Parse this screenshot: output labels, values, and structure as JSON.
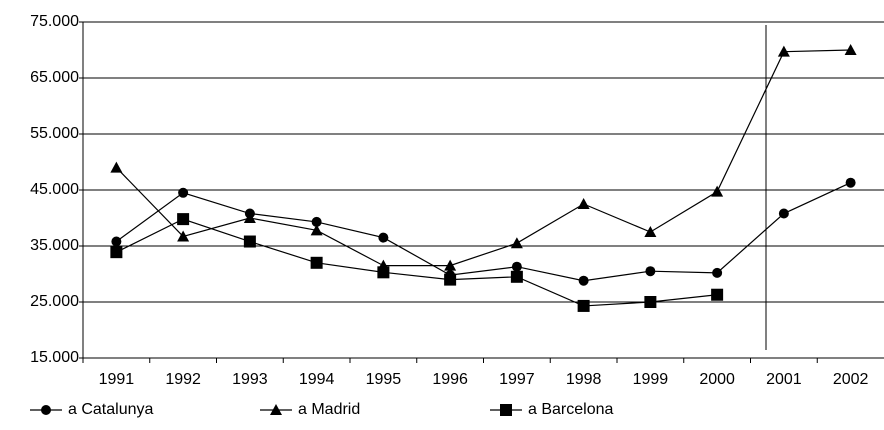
{
  "chart_data": {
    "type": "line",
    "categories": [
      "1991",
      "1992",
      "1993",
      "1994",
      "1995",
      "1996",
      "1997",
      "1998",
      "1999",
      "2000",
      "2001",
      "2002"
    ],
    "series": [
      {
        "name": "a Catalunya",
        "color": "#000000",
        "marker": "circle",
        "values": [
          35800,
          44500,
          40800,
          39300,
          36500,
          29800,
          31300,
          28800,
          30500,
          30200,
          40800,
          46300
        ]
      },
      {
        "name": "a Madrid",
        "color": "#000000",
        "marker": "triangle",
        "values": [
          49000,
          36700,
          40000,
          37800,
          31500,
          31500,
          35500,
          42500,
          37500,
          44700,
          69700,
          70000
        ]
      },
      {
        "name": "a Barcelona",
        "color": "#000000",
        "marker": "square",
        "values": [
          33900,
          39800,
          35800,
          32000,
          30300,
          29000,
          29500,
          24300,
          25000,
          26300,
          null,
          null
        ]
      }
    ],
    "ylim": [
      15000,
      75000
    ],
    "yticks": [
      {
        "value": 15000,
        "label": "15.000"
      },
      {
        "value": 25000,
        "label": "25.000"
      },
      {
        "value": 35000,
        "label": "35.000"
      },
      {
        "value": 45000,
        "label": "45.000"
      },
      {
        "value": 55000,
        "label": "55.000"
      },
      {
        "value": 65000,
        "label": "65.000"
      },
      {
        "value": 75000,
        "label": "75.000"
      }
    ],
    "grid": true,
    "legend": "bottom"
  }
}
